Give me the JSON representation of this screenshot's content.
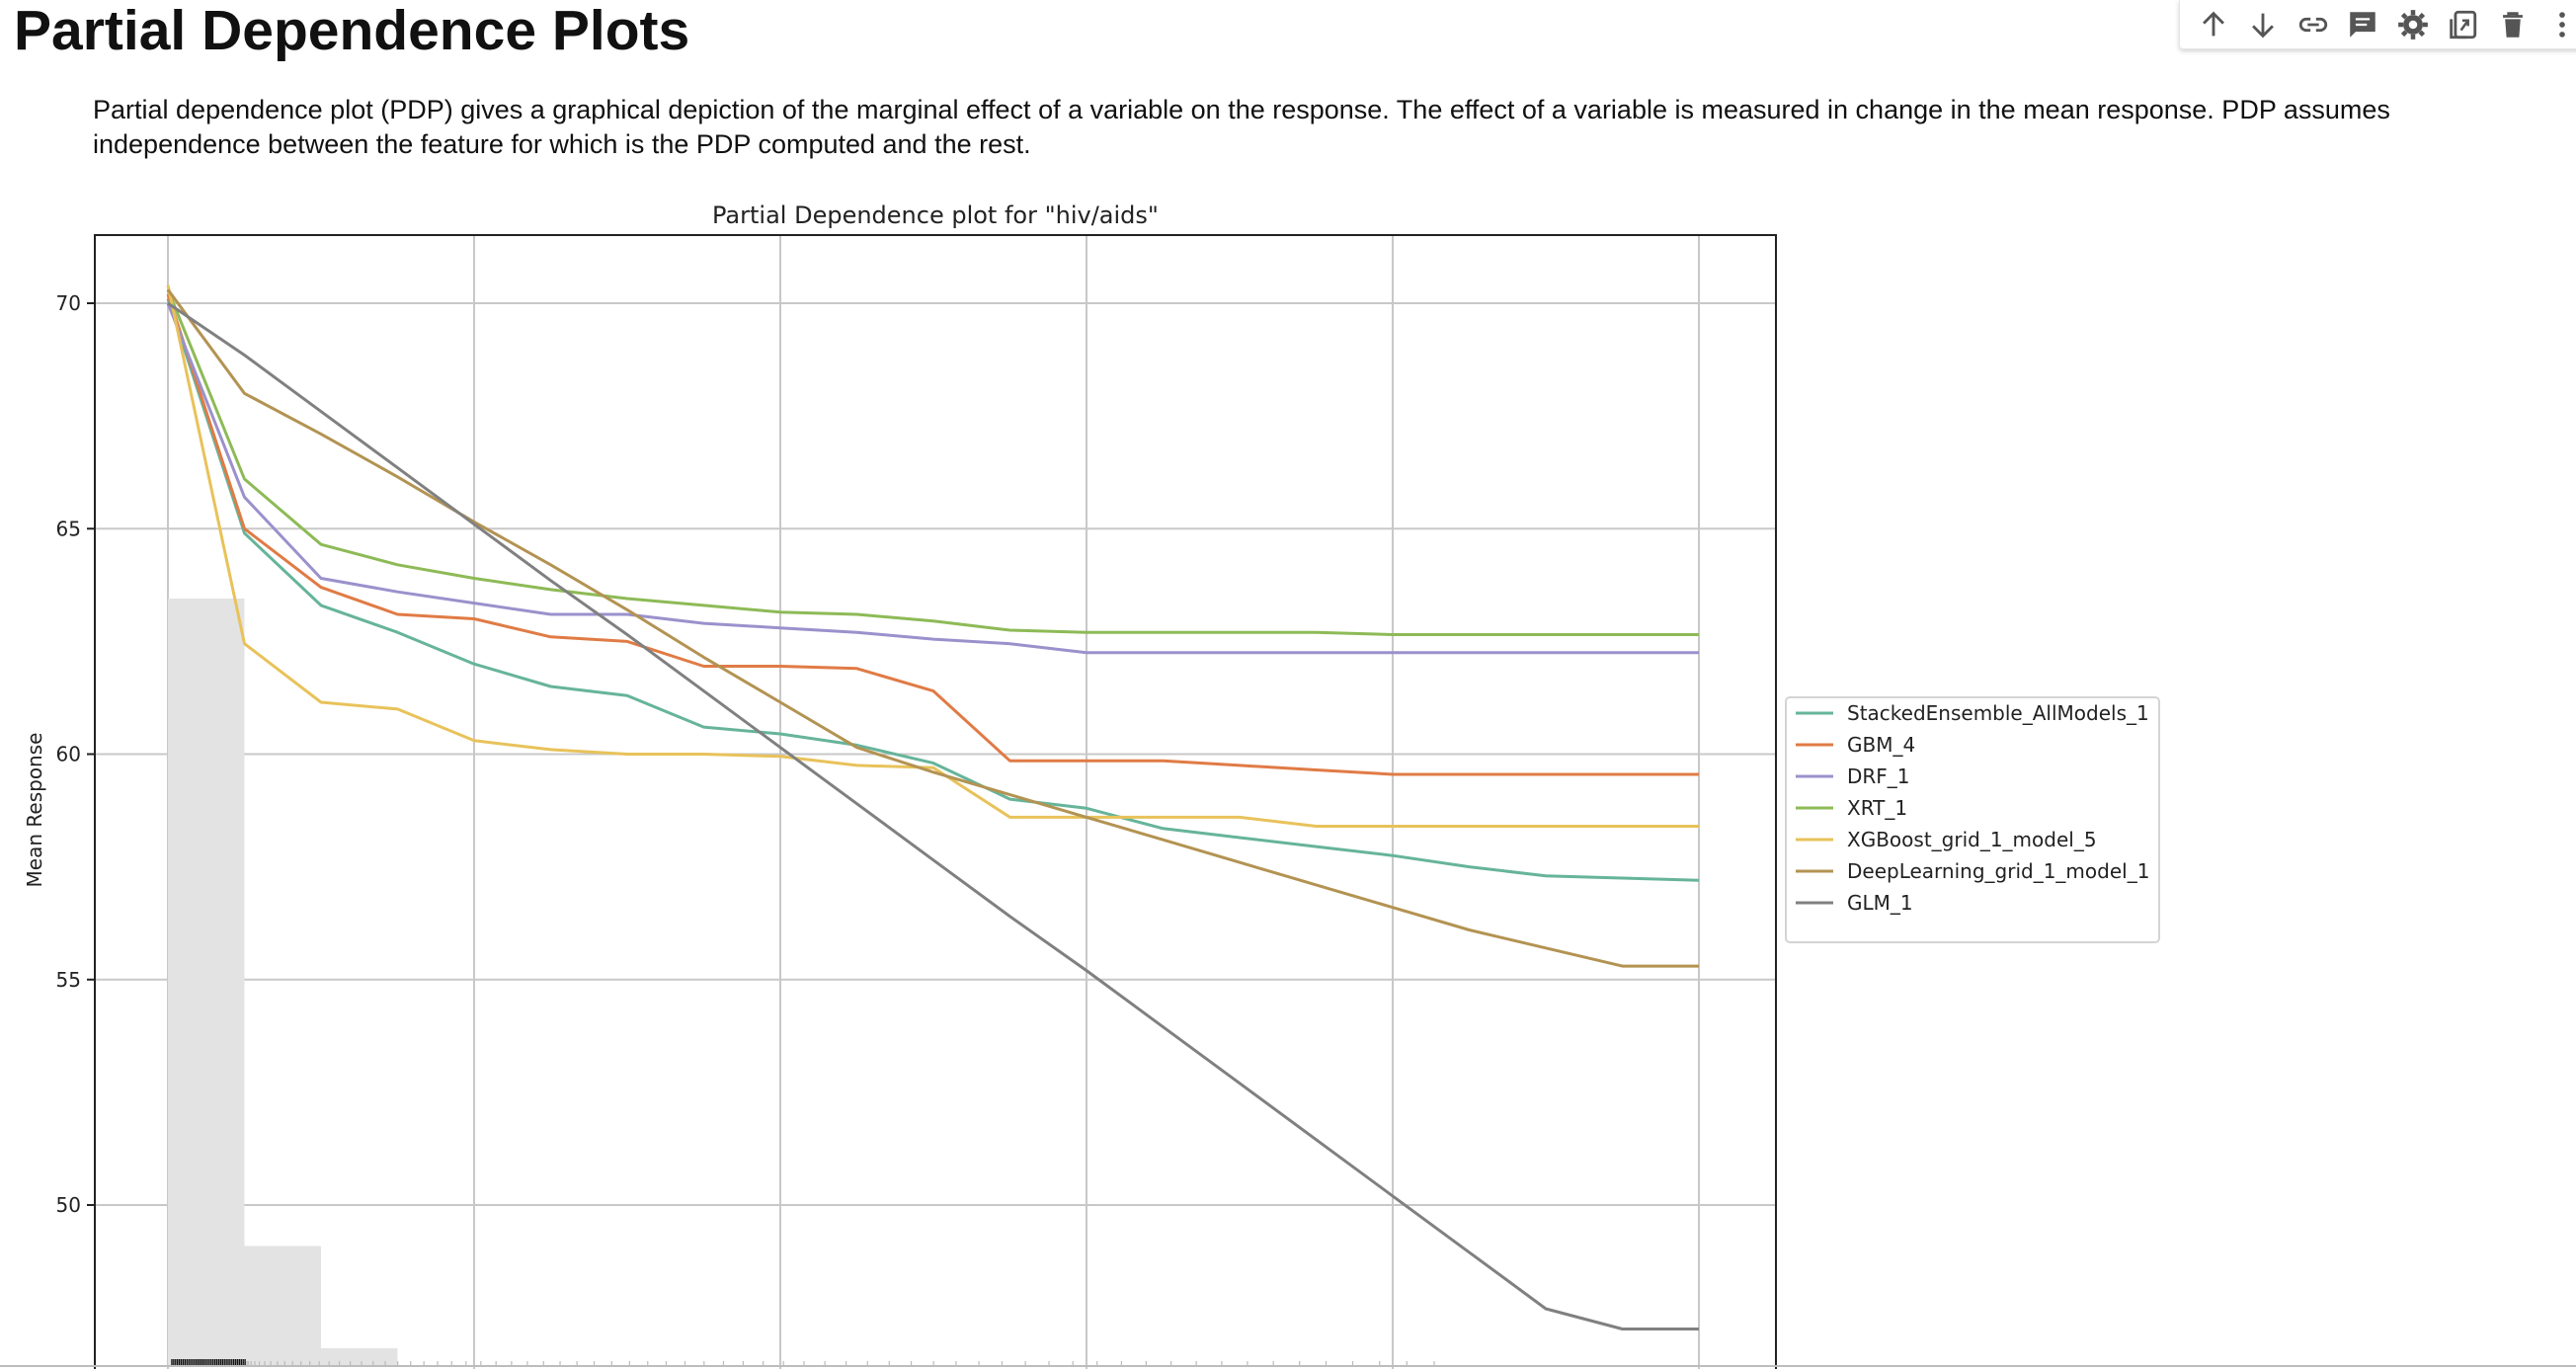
{
  "page": {
    "title": "Partial Dependence Plots",
    "description": "Partial dependence plot (PDP) gives a graphical depiction of the marginal effect of a variable on the response. The effect of a variable is measured in change in the mean response. PDP assumes independence between the feature for which is the PDP computed and the rest."
  },
  "toolbar": {
    "buttons": [
      {
        "name": "move-up",
        "icon": "arrow-up-icon"
      },
      {
        "name": "move-down",
        "icon": "arrow-down-icon"
      },
      {
        "name": "copy-link",
        "icon": "link-icon"
      },
      {
        "name": "add-comment",
        "icon": "comment-icon"
      },
      {
        "name": "settings",
        "icon": "gear-icon"
      },
      {
        "name": "edit-in-tab",
        "icon": "open-in-tab-icon"
      },
      {
        "name": "delete",
        "icon": "trash-icon"
      }
    ]
  },
  "chart_data": {
    "type": "line",
    "title": "Partial Dependence plot for \"hiv/aids\"",
    "ylabel": "Mean Response",
    "xlabel": "",
    "ylim": [
      46.5,
      71.5
    ],
    "yticks": [
      50,
      55,
      60,
      65,
      70
    ],
    "grid": true,
    "legend_position": "right",
    "x": [
      0.1,
      2.6,
      5.1,
      7.6,
      10.1,
      12.6,
      15.1,
      17.6,
      20.1,
      22.6,
      25.1,
      27.6,
      30.1,
      32.6,
      35.1,
      37.6,
      40.1,
      42.6,
      45.1,
      47.6,
      50.1
    ],
    "series": [
      {
        "name": "StackedEnsemble_AllModels_1",
        "color": "#66b49a",
        "values": [
          70.1,
          64.9,
          63.3,
          62.7,
          62.0,
          61.5,
          61.3,
          60.6,
          60.45,
          60.2,
          59.8,
          59.0,
          58.8,
          58.35,
          58.15,
          57.95,
          57.75,
          57.5,
          57.3,
          57.25,
          57.2
        ]
      },
      {
        "name": "GBM_4",
        "color": "#e07b45",
        "values": [
          70.2,
          65.0,
          63.7,
          63.1,
          63.0,
          62.6,
          62.5,
          61.95,
          61.95,
          61.9,
          61.4,
          59.85,
          59.85,
          59.85,
          59.75,
          59.65,
          59.55,
          59.55,
          59.55,
          59.55,
          59.55
        ]
      },
      {
        "name": "DRF_1",
        "color": "#9a91cc",
        "values": [
          70.0,
          65.7,
          63.9,
          63.6,
          63.35,
          63.1,
          63.1,
          62.9,
          62.8,
          62.7,
          62.55,
          62.45,
          62.25,
          62.25,
          62.25,
          62.25,
          62.25,
          62.25,
          62.25,
          62.25,
          62.25
        ]
      },
      {
        "name": "XRT_1",
        "color": "#8dba56",
        "values": [
          70.3,
          66.1,
          64.65,
          64.2,
          63.9,
          63.65,
          63.45,
          63.3,
          63.15,
          63.1,
          62.95,
          62.75,
          62.7,
          62.7,
          62.7,
          62.7,
          62.65,
          62.65,
          62.65,
          62.65,
          62.65
        ]
      },
      {
        "name": "XGBoost_grid_1_model_5",
        "color": "#e8c25a",
        "values": [
          70.4,
          62.45,
          61.15,
          61.0,
          60.3,
          60.1,
          60.0,
          60.0,
          59.95,
          59.75,
          59.7,
          58.6,
          58.6,
          58.6,
          58.6,
          58.4,
          58.4,
          58.4,
          58.4,
          58.4,
          58.4
        ]
      },
      {
        "name": "DeepLearning_grid_1_model_1",
        "color": "#b39352",
        "values": [
          70.3,
          68.0,
          67.1,
          66.15,
          65.15,
          64.2,
          63.2,
          62.15,
          61.15,
          60.15,
          59.6,
          59.1,
          58.6,
          58.1,
          57.6,
          57.1,
          56.6,
          56.1,
          55.7,
          55.3,
          55.3
        ]
      },
      {
        "name": "GLM_1",
        "color": "#808080",
        "values": [
          70.0,
          68.85,
          67.6,
          66.35,
          65.1,
          63.85,
          62.65,
          61.4,
          60.15,
          58.9,
          57.65,
          56.4,
          55.2,
          53.95,
          52.7,
          51.45,
          50.2,
          48.95,
          47.7,
          47.25,
          47.25
        ]
      }
    ],
    "histogram": {
      "bins": [
        "0.1-2.6",
        "2.6-5.1",
        "5.1-7.6"
      ],
      "relative_heights": [
        0.68,
        0.11,
        0.02
      ]
    }
  }
}
